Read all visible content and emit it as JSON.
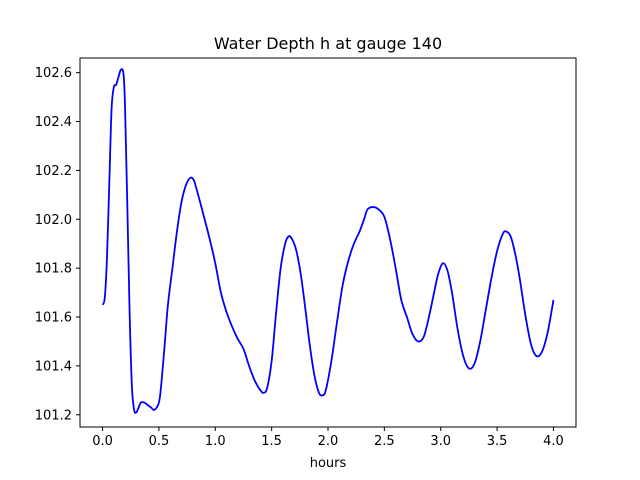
{
  "chart_data": {
    "type": "line",
    "title": "Water Depth h at gauge 140",
    "xlabel": "hours",
    "ylabel": "",
    "xlim": [
      -0.2,
      4.2
    ],
    "ylim": [
      101.15,
      102.66
    ],
    "x_ticks": [
      0.0,
      0.5,
      1.0,
      1.5,
      2.0,
      2.5,
      3.0,
      3.5,
      4.0
    ],
    "x_tick_labels": [
      "0.0",
      "0.5",
      "1.0",
      "1.5",
      "2.0",
      "2.5",
      "3.0",
      "3.5",
      "4.0"
    ],
    "y_ticks": [
      101.2,
      101.4,
      101.6,
      101.8,
      102.0,
      102.2,
      102.4,
      102.6
    ],
    "y_tick_labels": [
      "101.2",
      "101.4",
      "101.6",
      "101.8",
      "102.0",
      "102.2",
      "102.4",
      "102.6"
    ],
    "grid": false,
    "series": [
      {
        "color": "#0000ff",
        "x": [
          0.0,
          0.02,
          0.04,
          0.06,
          0.08,
          0.1,
          0.12,
          0.14,
          0.16,
          0.18,
          0.19,
          0.2,
          0.22,
          0.24,
          0.26,
          0.28,
          0.3,
          0.32,
          0.34,
          0.37,
          0.4,
          0.43,
          0.46,
          0.5,
          0.52,
          0.55,
          0.58,
          0.62,
          0.66,
          0.7,
          0.74,
          0.78,
          0.81,
          0.83,
          0.86,
          0.9,
          0.95,
          1.0,
          1.05,
          1.1,
          1.15,
          1.2,
          1.25,
          1.3,
          1.35,
          1.4,
          1.43,
          1.46,
          1.5,
          1.54,
          1.58,
          1.62,
          1.65,
          1.68,
          1.72,
          1.76,
          1.8,
          1.84,
          1.88,
          1.92,
          1.95,
          1.98,
          2.03,
          2.08,
          2.13,
          2.18,
          2.23,
          2.28,
          2.32,
          2.35,
          2.4,
          2.45,
          2.5,
          2.55,
          2.6,
          2.65,
          2.7,
          2.75,
          2.8,
          2.85,
          2.9,
          2.95,
          2.98,
          3.02,
          3.06,
          3.1,
          3.15,
          3.2,
          3.25,
          3.3,
          3.35,
          3.4,
          3.45,
          3.5,
          3.55,
          3.58,
          3.62,
          3.66,
          3.7,
          3.75,
          3.8,
          3.85,
          3.9,
          3.95,
          4.0
        ],
        "y": [
          101.65,
          101.68,
          101.85,
          102.15,
          102.45,
          102.54,
          102.55,
          102.58,
          102.61,
          102.61,
          102.57,
          102.45,
          102.05,
          101.62,
          101.32,
          101.22,
          101.21,
          101.23,
          101.25,
          101.25,
          101.24,
          101.23,
          101.22,
          101.25,
          101.32,
          101.48,
          101.65,
          101.8,
          101.95,
          102.07,
          102.14,
          102.17,
          102.16,
          102.13,
          102.08,
          102.01,
          101.92,
          101.82,
          101.7,
          101.62,
          101.56,
          101.51,
          101.47,
          101.4,
          101.34,
          101.3,
          101.29,
          101.31,
          101.42,
          101.62,
          101.8,
          101.9,
          101.93,
          101.92,
          101.87,
          101.77,
          101.63,
          101.48,
          101.36,
          101.29,
          101.28,
          101.3,
          101.42,
          101.58,
          101.73,
          101.83,
          101.9,
          101.95,
          102.0,
          102.04,
          102.05,
          102.04,
          102.01,
          101.92,
          101.8,
          101.67,
          101.6,
          101.53,
          101.5,
          101.52,
          101.61,
          101.72,
          101.78,
          101.82,
          101.79,
          101.7,
          101.55,
          101.44,
          101.39,
          101.41,
          101.5,
          101.63,
          101.76,
          101.87,
          101.94,
          101.95,
          101.93,
          101.86,
          101.76,
          101.61,
          101.49,
          101.44,
          101.46,
          101.54,
          101.67
        ]
      }
    ]
  }
}
